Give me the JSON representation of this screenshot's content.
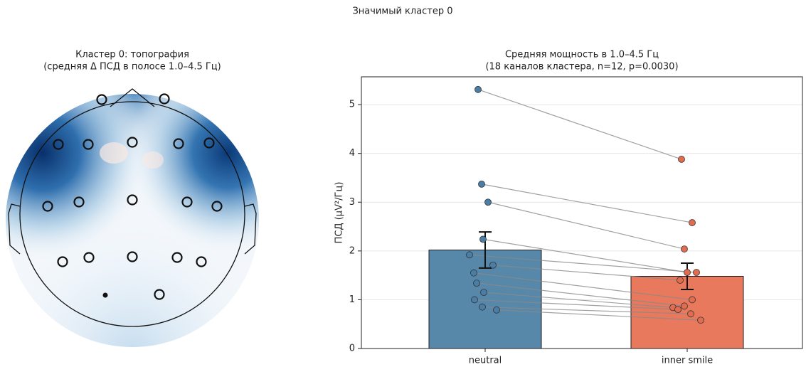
{
  "title": "Значимый кластер 0",
  "chart_data": [
    {
      "type": "topomap",
      "title": "Кластер 0: топография",
      "subtitle": "(средняя Δ ПСД в полосе 1.0–4.5 Гц)"
    },
    {
      "type": "bar",
      "title": "Средняя мощность в 1.0–4.5 Гц",
      "subtitle": "(18 каналов кластера, n=12, p=0.0030)",
      "ylabel": "ПСД (µV²/Гц)",
      "categories": [
        "neutral",
        "inner smile"
      ],
      "values": [
        2.02,
        1.48
      ],
      "errors": [
        0.37,
        0.27
      ],
      "colors": [
        "#5787a9",
        "#e8795d"
      ],
      "point_colors": [
        "#4a7ea6",
        "#e26c50"
      ],
      "points": [
        [
          5.31,
          3.37,
          3.0,
          2.24,
          1.92,
          1.71,
          1.55,
          1.34,
          1.15,
          1.0,
          0.85,
          0.79
        ],
        [
          3.88,
          2.58,
          2.04,
          1.56,
          1.56,
          1.4,
          1.0,
          0.87,
          0.84,
          0.8,
          0.71,
          0.58
        ]
      ],
      "ylim": [
        0,
        5.57
      ],
      "yticks": [
        0,
        1,
        2,
        3,
        4,
        5
      ],
      "grid": true
    }
  ]
}
